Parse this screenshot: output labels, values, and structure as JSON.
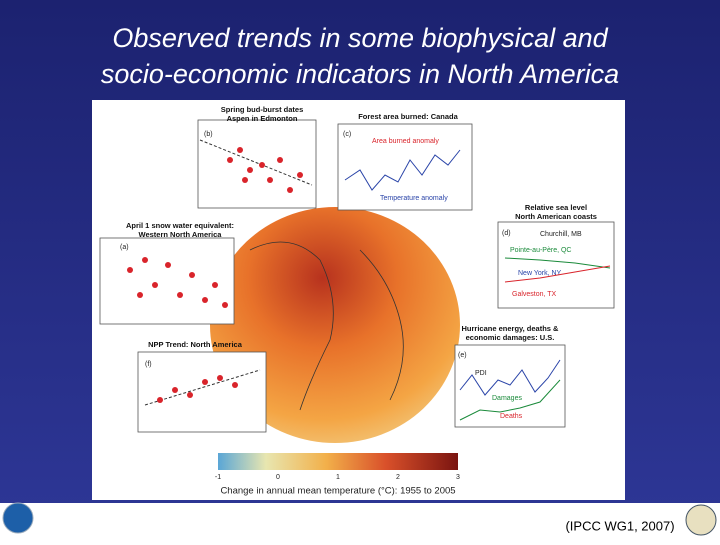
{
  "title": {
    "lines": [
      "Observed trends in some biophysical and",
      "socio-economic indicators in North America"
    ]
  },
  "figure": {
    "panel_b": {
      "label": "(b)",
      "title": [
        "Spring bud-burst dates",
        "Aspen in Edmonton"
      ]
    },
    "panel_c": {
      "label": "(c)",
      "title": "Forest area burned: Canada",
      "series": [
        "Area burned anomaly",
        "Temperature anomaly"
      ]
    },
    "panel_d": {
      "label": "(d)",
      "title": [
        "Relative sea level",
        "North American coasts"
      ],
      "series": [
        "Churchill, MB",
        "Pointe-au-Père, QC",
        "New York, NY",
        "Galveston, TX"
      ]
    },
    "panel_a": {
      "label": "(a)",
      "title": [
        "April 1 snow water equivalent:",
        "Western North America"
      ]
    },
    "panel_f": {
      "label": "(f)",
      "title": "NPP Trend: North America"
    },
    "panel_e": {
      "label": "(e)",
      "title": [
        "Hurricane energy, deaths &",
        "economic damages: U.S."
      ],
      "series": [
        "PDI",
        "Damages",
        "Deaths"
      ]
    },
    "colorbar": {
      "ticks": [
        "-1",
        "0",
        "1",
        "2",
        "3"
      ],
      "caption": "Change in annual mean temperature (°C): 1955 to 2005"
    }
  },
  "citation": "(IPCC WG1, 2007)"
}
